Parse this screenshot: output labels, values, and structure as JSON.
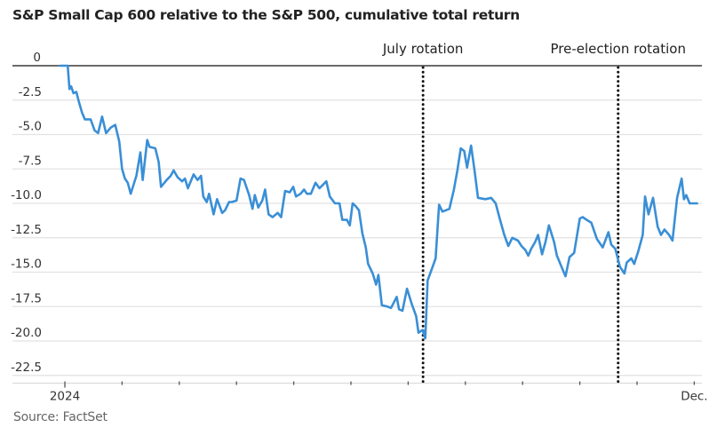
{
  "chart_data": {
    "type": "line",
    "title": "S&P Small Cap 600 relative to the S&P 500, cumulative total return",
    "source": "Source: FactSet",
    "xlabel": "",
    "ylabel": "",
    "x_unit": "months since Jan 1 2024",
    "xlim": [
      -0.1,
      11.15
    ],
    "ylim": [
      -23.2,
      0.6
    ],
    "yticks": [
      0,
      -2.5,
      -5,
      -7.5,
      -10,
      -12.5,
      -15,
      -17.5,
      -20,
      -22.5
    ],
    "ytick_labels": [
      "0",
      "-2.5",
      "-5.0",
      "-7.5",
      "-10.0",
      "-12.5",
      "-15.0",
      "-17.5",
      "-20.0",
      "-22.5"
    ],
    "xticks": [
      0,
      1,
      2,
      3,
      4,
      5,
      6,
      7,
      8,
      9,
      10,
      11
    ],
    "xtick_labels": [
      {
        "x": 0,
        "label": "2024"
      },
      {
        "x": 11,
        "label": "Dec."
      }
    ],
    "grid": true,
    "line_color": "#3a8fd6",
    "annotations": [
      {
        "label": "July rotation",
        "x": 6.26
      },
      {
        "label": "Pre-election rotation",
        "x": 9.67
      }
    ],
    "series": [
      {
        "name": "S&P Small Cap 600 vs S&P 500",
        "points": [
          [
            -0.08,
            0.0
          ],
          [
            0.05,
            0.0
          ],
          [
            0.08,
            -1.7
          ],
          [
            0.11,
            -1.5
          ],
          [
            0.15,
            -2.0
          ],
          [
            0.2,
            -1.9
          ],
          [
            0.25,
            -2.7
          ],
          [
            0.3,
            -3.4
          ],
          [
            0.35,
            -3.9
          ],
          [
            0.45,
            -3.9
          ],
          [
            0.52,
            -4.7
          ],
          [
            0.58,
            -4.9
          ],
          [
            0.65,
            -3.7
          ],
          [
            0.72,
            -4.9
          ],
          [
            0.8,
            -4.5
          ],
          [
            0.88,
            -4.3
          ],
          [
            0.95,
            -5.5
          ],
          [
            1.0,
            -7.5
          ],
          [
            1.05,
            -8.2
          ],
          [
            1.1,
            -8.5
          ],
          [
            1.15,
            -9.3
          ],
          [
            1.25,
            -8.0
          ],
          [
            1.32,
            -6.3
          ],
          [
            1.36,
            -8.3
          ],
          [
            1.44,
            -5.4
          ],
          [
            1.48,
            -5.9
          ],
          [
            1.58,
            -6.0
          ],
          [
            1.64,
            -7.0
          ],
          [
            1.68,
            -8.8
          ],
          [
            1.78,
            -8.3
          ],
          [
            1.85,
            -8.0
          ],
          [
            1.9,
            -7.6
          ],
          [
            1.97,
            -8.1
          ],
          [
            2.05,
            -8.4
          ],
          [
            2.1,
            -8.2
          ],
          [
            2.15,
            -8.9
          ],
          [
            2.25,
            -7.9
          ],
          [
            2.32,
            -8.3
          ],
          [
            2.38,
            -8.0
          ],
          [
            2.42,
            -9.5
          ],
          [
            2.48,
            -9.9
          ],
          [
            2.52,
            -9.3
          ],
          [
            2.6,
            -10.8
          ],
          [
            2.66,
            -9.7
          ],
          [
            2.75,
            -10.7
          ],
          [
            2.8,
            -10.5
          ],
          [
            2.87,
            -9.9
          ],
          [
            2.92,
            -9.9
          ],
          [
            3.0,
            -9.8
          ],
          [
            3.07,
            -8.2
          ],
          [
            3.13,
            -8.3
          ],
          [
            3.22,
            -9.4
          ],
          [
            3.28,
            -10.4
          ],
          [
            3.32,
            -9.4
          ],
          [
            3.38,
            -10.3
          ],
          [
            3.45,
            -9.8
          ],
          [
            3.5,
            -9.0
          ],
          [
            3.56,
            -10.8
          ],
          [
            3.63,
            -11.0
          ],
          [
            3.72,
            -10.7
          ],
          [
            3.78,
            -11.0
          ],
          [
            3.85,
            -9.1
          ],
          [
            3.93,
            -9.2
          ],
          [
            3.99,
            -8.8
          ],
          [
            4.04,
            -9.5
          ],
          [
            4.12,
            -9.3
          ],
          [
            4.18,
            -9.0
          ],
          [
            4.23,
            -9.3
          ],
          [
            4.3,
            -9.3
          ],
          [
            4.38,
            -8.5
          ],
          [
            4.45,
            -8.9
          ],
          [
            4.5,
            -8.7
          ],
          [
            4.57,
            -8.4
          ],
          [
            4.63,
            -9.5
          ],
          [
            4.72,
            -10.0
          ],
          [
            4.8,
            -10.0
          ],
          [
            4.85,
            -11.2
          ],
          [
            4.93,
            -11.2
          ],
          [
            4.98,
            -11.6
          ],
          [
            5.03,
            -10.0
          ],
          [
            5.08,
            -10.2
          ],
          [
            5.14,
            -10.5
          ],
          [
            5.2,
            -12.2
          ],
          [
            5.26,
            -13.2
          ],
          [
            5.3,
            -14.4
          ],
          [
            5.38,
            -15.1
          ],
          [
            5.44,
            -15.9
          ],
          [
            5.48,
            -15.2
          ],
          [
            5.54,
            -17.4
          ],
          [
            5.64,
            -17.5
          ],
          [
            5.7,
            -17.6
          ],
          [
            5.8,
            -16.8
          ],
          [
            5.84,
            -17.7
          ],
          [
            5.9,
            -17.8
          ],
          [
            5.98,
            -16.2
          ],
          [
            6.07,
            -17.4
          ],
          [
            6.14,
            -18.2
          ],
          [
            6.18,
            -19.4
          ],
          [
            6.25,
            -19.2
          ],
          [
            6.3,
            -19.8
          ],
          [
            6.34,
            -15.6
          ],
          [
            6.42,
            -14.7
          ],
          [
            6.48,
            -14.0
          ],
          [
            6.54,
            -10.1
          ],
          [
            6.6,
            -10.6
          ],
          [
            6.72,
            -10.4
          ],
          [
            6.8,
            -9.0
          ],
          [
            6.86,
            -7.6
          ],
          [
            6.92,
            -6.0
          ],
          [
            6.98,
            -6.2
          ],
          [
            7.03,
            -7.4
          ],
          [
            7.1,
            -5.8
          ],
          [
            7.16,
            -7.6
          ],
          [
            7.22,
            -9.6
          ],
          [
            7.35,
            -9.7
          ],
          [
            7.45,
            -9.6
          ],
          [
            7.53,
            -10.0
          ],
          [
            7.6,
            -11.1
          ],
          [
            7.68,
            -12.3
          ],
          [
            7.75,
            -13.1
          ],
          [
            7.82,
            -12.5
          ],
          [
            7.92,
            -12.7
          ],
          [
            7.98,
            -13.1
          ],
          [
            8.05,
            -13.4
          ],
          [
            8.1,
            -13.8
          ],
          [
            8.15,
            -13.3
          ],
          [
            8.22,
            -12.8
          ],
          [
            8.27,
            -12.3
          ],
          [
            8.34,
            -13.7
          ],
          [
            8.4,
            -12.8
          ],
          [
            8.46,
            -11.6
          ],
          [
            8.55,
            -12.8
          ],
          [
            8.6,
            -13.8
          ],
          [
            8.67,
            -14.5
          ],
          [
            8.75,
            -15.3
          ],
          [
            8.82,
            -13.9
          ],
          [
            8.9,
            -13.6
          ],
          [
            9.0,
            -11.1
          ],
          [
            9.05,
            -11.0
          ],
          [
            9.12,
            -11.2
          ],
          [
            9.2,
            -11.4
          ],
          [
            9.3,
            -12.6
          ],
          [
            9.4,
            -13.2
          ],
          [
            9.5,
            -12.1
          ],
          [
            9.55,
            -13.0
          ],
          [
            9.62,
            -13.3
          ],
          [
            9.7,
            -14.6
          ],
          [
            9.78,
            -15.1
          ],
          [
            9.82,
            -14.3
          ],
          [
            9.9,
            -14.0
          ],
          [
            9.95,
            -14.4
          ],
          [
            10.02,
            -13.5
          ],
          [
            10.1,
            -12.3
          ],
          [
            10.14,
            -9.5
          ],
          [
            10.2,
            -10.8
          ],
          [
            10.28,
            -9.6
          ],
          [
            10.36,
            -11.7
          ],
          [
            10.42,
            -12.3
          ],
          [
            10.48,
            -11.9
          ],
          [
            10.56,
            -12.3
          ],
          [
            10.62,
            -12.7
          ],
          [
            10.7,
            -9.6
          ],
          [
            10.78,
            -8.2
          ],
          [
            10.82,
            -9.7
          ],
          [
            10.86,
            -9.4
          ],
          [
            10.92,
            -10.0
          ],
          [
            11.05,
            -10.0
          ]
        ]
      }
    ]
  }
}
